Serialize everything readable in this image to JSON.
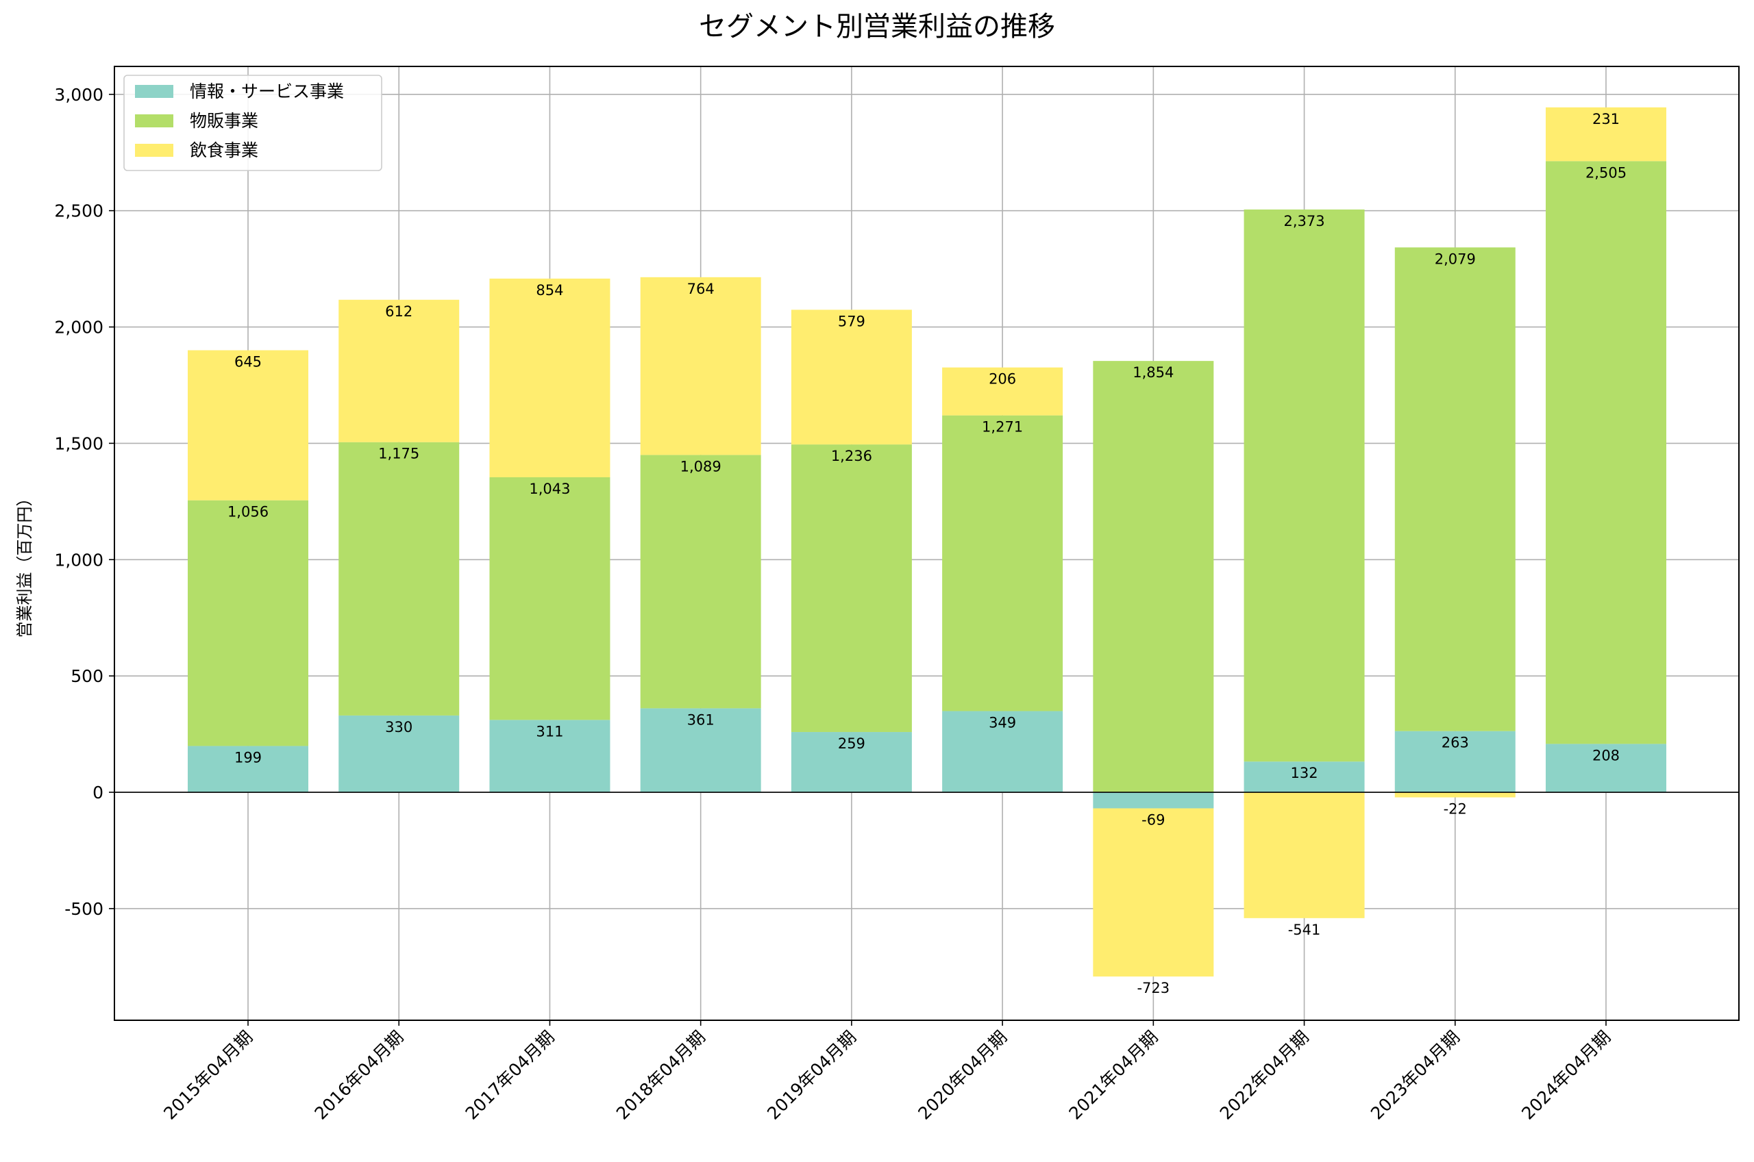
{
  "chart_data": {
    "type": "bar",
    "stacked": true,
    "title": "セグメント別営業利益の推移",
    "xlabel": "",
    "ylabel": "営業利益（百万円）",
    "ylim": [
      -980,
      3120
    ],
    "yticks": [
      -500,
      0,
      500,
      1000,
      1500,
      2000,
      2500,
      3000
    ],
    "ytick_labels": [
      "-500",
      "0",
      "500",
      "1,000",
      "1,500",
      "2,000",
      "2,500",
      "3,000"
    ],
    "grid": true,
    "legend": "upper-left",
    "categories": [
      "2015年04月期",
      "2016年04月期",
      "2017年04月期",
      "2018年04月期",
      "2019年04月期",
      "2020年04月期",
      "2021年04月期",
      "2022年04月期",
      "2023年04月期",
      "2024年04月期"
    ],
    "series": [
      {
        "name": "情報・サービス事業",
        "color": "#8dd3c7",
        "values": [
          199,
          330,
          311,
          361,
          259,
          349,
          -69,
          132,
          263,
          208
        ]
      },
      {
        "name": "物販事業",
        "color": "#b3de69",
        "values": [
          1056,
          1175,
          1043,
          1089,
          1236,
          1271,
          1854,
          2373,
          2079,
          2505
        ]
      },
      {
        "name": "飲食事業",
        "color": "#ffed6f",
        "values": [
          645,
          612,
          854,
          764,
          579,
          206,
          -723,
          -541,
          -22,
          231
        ]
      }
    ]
  }
}
